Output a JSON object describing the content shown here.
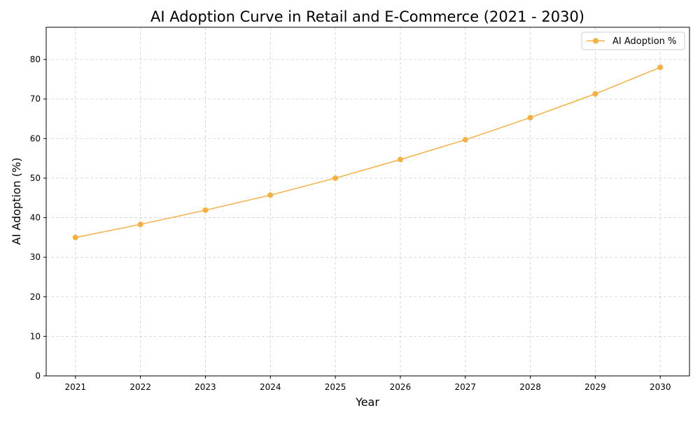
{
  "chart_data": {
    "type": "line",
    "title": "AI Adoption Curve in Retail and E-Commerce (2021 - 2030)",
    "xlabel": "Year",
    "ylabel": "AI Adoption (%)",
    "x": [
      2021,
      2022,
      2023,
      2024,
      2025,
      2026,
      2027,
      2028,
      2029,
      2030
    ],
    "series": [
      {
        "name": "AI Adoption %",
        "values": [
          35.0,
          38.3,
          41.9,
          45.7,
          50.0,
          54.7,
          59.7,
          65.3,
          71.3,
          78.0
        ],
        "color": "#f5b041",
        "marker": "circle"
      }
    ],
    "xticks": [
      "2021",
      "2022",
      "2023",
      "2024",
      "2025",
      "2026",
      "2027",
      "2028",
      "2029",
      "2030"
    ],
    "yticks": [
      "0",
      "10",
      "20",
      "30",
      "40",
      "50",
      "60",
      "70",
      "80"
    ],
    "xlim": [
      2020.55,
      2030.45
    ],
    "ylim": [
      0,
      88.15
    ],
    "grid": true,
    "legend_position": "top-right"
  }
}
